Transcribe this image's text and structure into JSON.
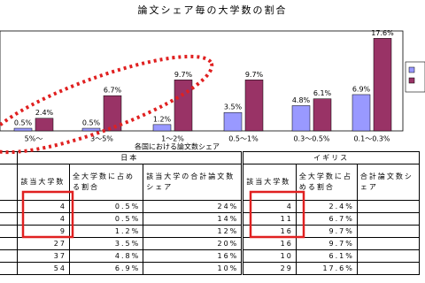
{
  "title": "論文シェア毎の大学数の割合",
  "chart_data": {
    "type": "bar",
    "x_label": "各国における論文数シェア",
    "categories": [
      "5%～",
      "3～5%",
      "1～2%",
      "0.5～1%",
      "0.3～0.5%",
      "0.1～0.3%"
    ],
    "ylim": [
      0,
      19
    ],
    "series": [
      {
        "color": "#9999ff",
        "values": [
          0.5,
          0.5,
          1.2,
          3.5,
          4.8,
          6.9
        ],
        "value_labels": [
          "0.5%",
          "0.5%",
          "1.2%",
          "3.5%",
          "4.8%",
          "6.9%"
        ]
      },
      {
        "color": "#993366",
        "values": [
          2.4,
          6.7,
          9.7,
          9.7,
          6.1,
          17.6
        ],
        "value_labels": [
          "2.4%",
          "6.7%",
          "9.7%",
          "9.7%",
          "6.1%",
          "17.6%"
        ]
      }
    ]
  },
  "table": {
    "groups": [
      "日本",
      "イギリス"
    ],
    "columns": [
      "該当大学数",
      "全大学数に占める割合",
      "該当大学の合計論文数シェア",
      "該当大学数",
      "全大学数に占める割合",
      "合計論文数シェア"
    ],
    "rows": [
      [
        "4",
        "0.5%",
        "24%",
        "4",
        "2.4%"
      ],
      [
        "4",
        "0.5%",
        "14%",
        "11",
        "6.7%"
      ],
      [
        "9",
        "1.2%",
        "12%",
        "16",
        "9.7%"
      ],
      [
        "27",
        "3.5%",
        "20%",
        "16",
        "9.7%"
      ],
      [
        "37",
        "4.8%",
        "16%",
        "10",
        "6.1%"
      ],
      [
        "54",
        "6.9%",
        "10%",
        "29",
        "17.6%"
      ]
    ]
  }
}
